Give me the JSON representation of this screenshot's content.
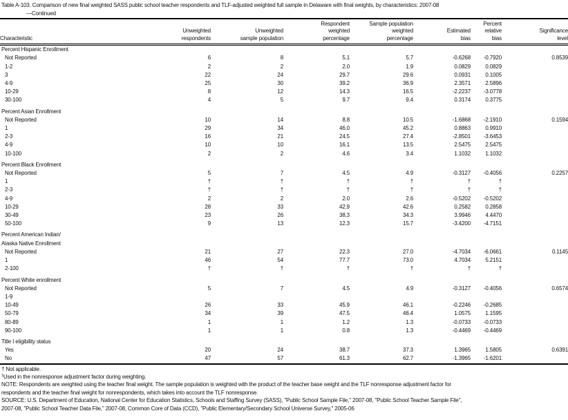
{
  "title": "Table A-103. Comparison of new final weighted SASS public school teacher respondents and TLF-adjusted weighted full sample in Delaware with final weights, by characteristics: 2007-08",
  "continued": "—Continued",
  "headers": [
    [
      "",
      "",
      "Characteristic"
    ],
    [
      "",
      "Unweighted",
      "respondents"
    ],
    [
      "",
      "Unweighted",
      "sample population"
    ],
    [
      "Respondent",
      "weighted",
      "percentage"
    ],
    [
      "Sample population",
      "weighted",
      "percentage"
    ],
    [
      "",
      "Estimated",
      "bias"
    ],
    [
      "Percent",
      "relative",
      "bias"
    ],
    [
      "",
      "Significance",
      "level"
    ]
  ],
  "sections": [
    {
      "title": [
        "Percent Hispanic Enrollment"
      ],
      "rows": [
        [
          "Not Reported",
          "6",
          "8",
          "5.1",
          "5.7",
          "-0.6268",
          "-0.7920",
          "0.8539"
        ],
        [
          "1-2",
          "2",
          "2",
          "2.0",
          "1.9",
          "0.0829",
          "0.0829",
          ""
        ],
        [
          "3",
          "22",
          "24",
          "29.7",
          "29.6",
          "0.0931",
          "0.1005",
          ""
        ],
        [
          "4-9",
          "25",
          "30",
          "39.2",
          "36.9",
          "2.3571",
          "2.5896",
          ""
        ],
        [
          "10-29",
          "8",
          "12",
          "14.3",
          "16.5",
          "-2.2237",
          "-3.0778",
          ""
        ],
        [
          "30-100",
          "4",
          "5",
          "9.7",
          "9.4",
          "0.3174",
          "0.3775",
          ""
        ]
      ]
    },
    {
      "title": [
        "Percent Asian Enrollment"
      ],
      "rows": [
        [
          "Not Reported",
          "10",
          "14",
          "8.8",
          "10.5",
          "-1.6868",
          "-2.1910",
          "0.1594"
        ],
        [
          "1",
          "29",
          "34",
          "46.0",
          "45.2",
          "0.8863",
          "0.9910",
          ""
        ],
        [
          "2-3",
          "16",
          "21",
          "24.5",
          "27.4",
          "-2.8501",
          "-3.6453",
          ""
        ],
        [
          "4-9",
          "10",
          "10",
          "16.1",
          "13.5",
          "2.5475",
          "2.5475",
          ""
        ],
        [
          "10-100",
          "2",
          "2",
          "4.6",
          "3.4",
          "1.1032",
          "1.1032",
          ""
        ]
      ]
    },
    {
      "title": [
        "Percent Black Enrollment"
      ],
      "rows": [
        [
          "Not Reported",
          "5",
          "7",
          "4.5",
          "4.9",
          "-0.3127",
          "-0.4056",
          "0.2257"
        ],
        [
          "1",
          "†",
          "†",
          "†",
          "†",
          "†",
          "†",
          ""
        ],
        [
          "2-3",
          "†",
          "†",
          "†",
          "†",
          "†",
          "†",
          ""
        ],
        [
          "4-9",
          "2",
          "2",
          "2.0",
          "2.6",
          "-0.5202",
          "-0.5202",
          ""
        ],
        [
          "10-29",
          "28",
          "33",
          "42.9",
          "42.6",
          "0.2582",
          "0.2858",
          ""
        ],
        [
          "30-49",
          "23",
          "26",
          "38.3",
          "34.3",
          "3.9946",
          "4.4470",
          ""
        ],
        [
          "50-100",
          "9",
          "13",
          "12.3",
          "15.7",
          "-3.4200",
          "-4.7151",
          ""
        ]
      ]
    },
    {
      "title": [
        "Percent American Indian/",
        "Alaska Native Enrollment"
      ],
      "rows": [
        [
          "Not Reported",
          "21",
          "27",
          "22.3",
          "27.0",
          "-4.7034",
          "-6.0661",
          "0.1145"
        ],
        [
          "1",
          "46",
          "54",
          "77.7",
          "73.0",
          "4.7034",
          "5.2151",
          ""
        ],
        [
          "2-100",
          "†",
          "†",
          "†",
          "†",
          "†",
          "†",
          ""
        ]
      ]
    },
    {
      "title": [
        "Percent White enrollment"
      ],
      "rows": [
        [
          "Not Reported",
          "5",
          "7",
          "4.5",
          "4.9",
          "-0.3127",
          "-0.4056",
          "0.6574"
        ],
        [
          "1-9",
          "",
          "",
          "",
          "",
          "",
          "",
          ""
        ],
        [
          "10-49",
          "26",
          "33",
          "45.9",
          "46.1",
          "-0.2246",
          "-0.2685",
          ""
        ],
        [
          "50-79",
          "34",
          "39",
          "47.5",
          "46.4",
          "1.0575",
          "1.1595",
          ""
        ],
        [
          "80-89",
          "1",
          "1",
          "1.2",
          "1.3",
          "-0.0733",
          "-0.0733",
          ""
        ],
        [
          "90-100",
          "1",
          "1",
          "0.8",
          "1.3",
          "-0.4469",
          "-0.4469",
          ""
        ]
      ]
    },
    {
      "title": [
        "Title I eligibility status"
      ],
      "rows": [
        [
          "Yes",
          "20",
          "24",
          "38.7",
          "37.3",
          "1.3965",
          "1.5805",
          "0.6391"
        ],
        [
          "No",
          "47",
          "57",
          "61.3",
          "62.7",
          "-1.3965",
          "-1.6201",
          ""
        ]
      ]
    }
  ],
  "notes": {
    "dagger": "† Not applicable.",
    "footnote_mark": "1",
    "footnote": "Used in the nonresponse adjustment factor during weighting.",
    "note1": "NOTE: Respondents are weighted using the teacher final weight. The sample population is weighted with the product of the teacher base weight and the TLF nonresponse adjustment factor for",
    "note2": "respondents and the teacher final weight for nonrespondents, which takes into account the TLF nonresponse.",
    "source1": "SOURCE: U.S. Department of Education, National Center for Education Statistics, Schools and Staffing Survey (SASS), \"Public School Sample File,\" 2007-08, \"Public School Teacher Sample File\",",
    "source2": "2007-08, \"Public School Teacher Data File,\" 2007-08, Common Core of Data (CCD), \"Public Elementary/Secondary School Universe Survey,\" 2005-06"
  }
}
